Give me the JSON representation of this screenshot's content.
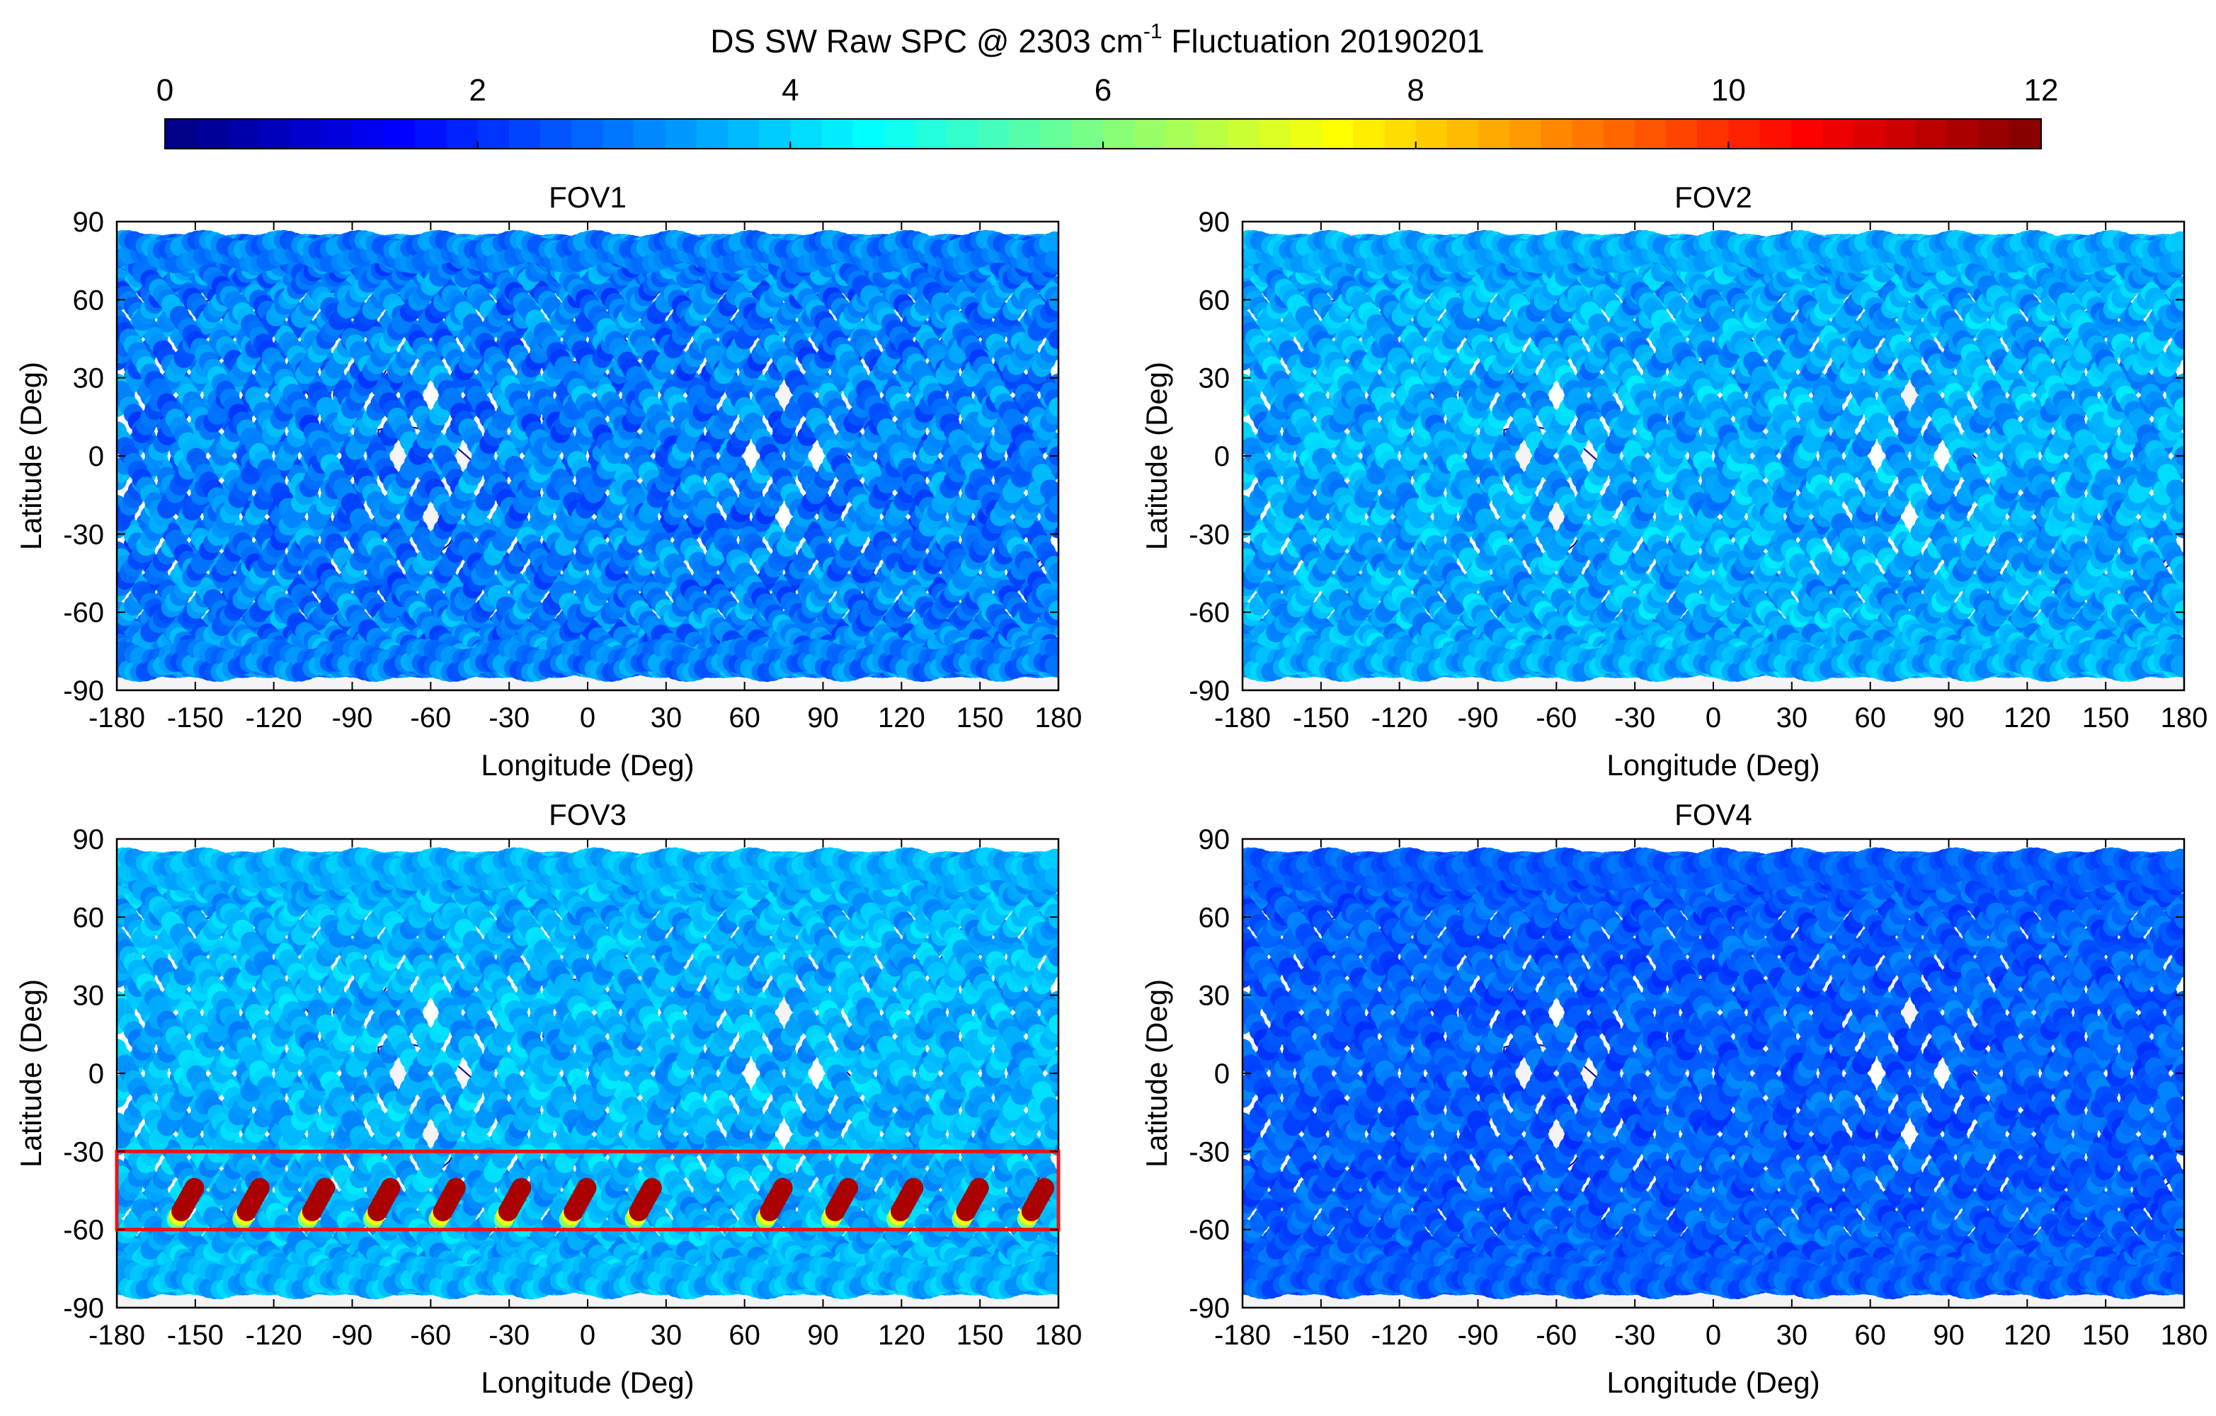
{
  "title": {
    "main": "DS SW Raw SPC @  2303 cm",
    "superscript": "-1",
    "suffix": " Fluctuation 20190201"
  },
  "colorbar": {
    "min": 0,
    "max": 12,
    "ticks": [
      "0",
      "2",
      "4",
      "6",
      "8",
      "10",
      "12"
    ],
    "colors": [
      "#00007f",
      "#0000ff",
      "#007fff",
      "#00ffff",
      "#7fff7f",
      "#ffff00",
      "#ff7f00",
      "#ff0000",
      "#7f0000"
    ]
  },
  "colors": {
    "coastline": "#1a0d9a",
    "highlight_box": "#e8141c",
    "land": "#f4f4f6"
  },
  "chart_data": [
    {
      "type": "scatter",
      "title": "FOV1",
      "xlabel": "Longitude (Deg)",
      "ylabel": "Latitude (Deg)",
      "xlim": [
        -180,
        180
      ],
      "ylim": [
        -90,
        90
      ],
      "xticks": [
        "-180",
        "-150",
        "-120",
        "-90",
        "-60",
        "-30",
        "0",
        "30",
        "60",
        "90",
        "120",
        "150",
        "180"
      ],
      "yticks": [
        "90",
        "60",
        "30",
        "0",
        "-30",
        "-60",
        "-90"
      ],
      "orbit_phases_deg": [
        -155,
        -130,
        -105,
        -80,
        -55,
        -30,
        -5,
        20,
        45,
        70,
        95,
        120,
        145,
        170
      ],
      "track_value": 3.0,
      "value_variation": 0.9,
      "hot_segments": []
    },
    {
      "type": "scatter",
      "title": "FOV2",
      "xlabel": "Longitude (Deg)",
      "ylabel": "Latitude (Deg)",
      "xlim": [
        -180,
        180
      ],
      "ylim": [
        -90,
        90
      ],
      "xticks": [
        "-180",
        "-150",
        "-120",
        "-90",
        "-60",
        "-30",
        "0",
        "30",
        "60",
        "90",
        "120",
        "150",
        "180"
      ],
      "yticks": [
        "90",
        "60",
        "30",
        "0",
        "-30",
        "-60",
        "-90"
      ],
      "orbit_phases_deg": [
        -155,
        -130,
        -105,
        -80,
        -55,
        -30,
        -5,
        20,
        45,
        70,
        95,
        120,
        145,
        170
      ],
      "track_value": 3.5,
      "value_variation": 0.8,
      "hot_segments": []
    },
    {
      "type": "scatter",
      "title": "FOV3",
      "xlabel": "Longitude (Deg)",
      "ylabel": "Latitude (Deg)",
      "xlim": [
        -180,
        180
      ],
      "ylim": [
        -90,
        90
      ],
      "xticks": [
        "-180",
        "-150",
        "-120",
        "-90",
        "-60",
        "-30",
        "0",
        "30",
        "60",
        "90",
        "120",
        "150",
        "180"
      ],
      "yticks": [
        "90",
        "60",
        "30",
        "0",
        "-30",
        "-60",
        "-90"
      ],
      "orbit_phases_deg": [
        -155,
        -130,
        -105,
        -80,
        -55,
        -30,
        -5,
        20,
        45,
        70,
        95,
        120,
        145,
        170
      ],
      "track_value": 3.6,
      "value_variation": 0.7,
      "highlight_box": {
        "lon_range": [
          -180,
          180
        ],
        "lat_range": [
          -60,
          -30
        ]
      },
      "hot_segments": [
        {
          "lon": -157,
          "lat_range": [
            -56,
            -44
          ],
          "value": 11.5
        },
        {
          "lon": -132,
          "lat_range": [
            -56,
            -44
          ],
          "value": 11.5
        },
        {
          "lon": -107,
          "lat_range": [
            -56,
            -44
          ],
          "value": 11.5
        },
        {
          "lon": -82,
          "lat_range": [
            -56,
            -44
          ],
          "value": 11.5
        },
        {
          "lon": -57,
          "lat_range": [
            -56,
            -44
          ],
          "value": 11.5
        },
        {
          "lon": -32,
          "lat_range": [
            -56,
            -44
          ],
          "value": 11.5
        },
        {
          "lon": -7,
          "lat_range": [
            -56,
            -44
          ],
          "value": 11.5
        },
        {
          "lon": 18,
          "lat_range": [
            -56,
            -44
          ],
          "value": 11.5
        },
        {
          "lon": 68,
          "lat_range": [
            -56,
            -44
          ],
          "value": 11.5
        },
        {
          "lon": 93,
          "lat_range": [
            -56,
            -44
          ],
          "value": 11.5
        },
        {
          "lon": 118,
          "lat_range": [
            -56,
            -44
          ],
          "value": 11.5
        },
        {
          "lon": 143,
          "lat_range": [
            -56,
            -44
          ],
          "value": 11.5
        },
        {
          "lon": 168,
          "lat_range": [
            -56,
            -44
          ],
          "value": 11.5
        }
      ]
    },
    {
      "type": "scatter",
      "title": "FOV4",
      "xlabel": "Longitude (Deg)",
      "ylabel": "Latitude (Deg)",
      "xlim": [
        -180,
        180
      ],
      "ylim": [
        -90,
        90
      ],
      "xticks": [
        "-180",
        "-150",
        "-120",
        "-90",
        "-60",
        "-30",
        "0",
        "30",
        "60",
        "90",
        "120",
        "150",
        "180"
      ],
      "yticks": [
        "90",
        "60",
        "30",
        "0",
        "-30",
        "-60",
        "-90"
      ],
      "orbit_phases_deg": [
        -155,
        -130,
        -105,
        -80,
        -55,
        -30,
        -5,
        20,
        45,
        70,
        95,
        120,
        145,
        170
      ],
      "track_value": 2.6,
      "value_variation": 0.6,
      "hot_segments": []
    }
  ]
}
